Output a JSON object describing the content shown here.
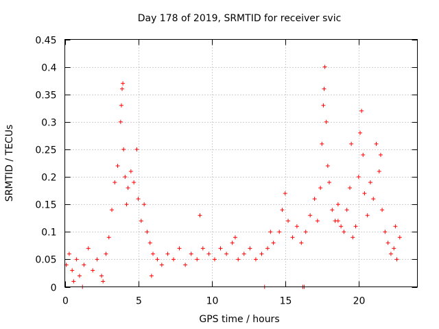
{
  "chart_data": {
    "type": "scatter",
    "title": "Day 178 of 2019, SRMTID for receiver svic",
    "xlabel": "GPS time / hours",
    "ylabel": "SRMTID / TECUs",
    "xlim": [
      0,
      24
    ],
    "ylim": [
      0,
      0.45
    ],
    "xticks": [
      0,
      5,
      10,
      15,
      20
    ],
    "xtick_labels": [
      "0",
      "5",
      "10",
      "15",
      "20"
    ],
    "yticks": [
      0,
      0.05,
      0.1,
      0.15,
      0.2,
      0.25,
      0.3,
      0.35,
      0.4,
      0.45
    ],
    "ytick_labels": [
      "0",
      "0.05",
      "0.1",
      "0.15",
      "0.2",
      "0.25",
      "0.3",
      "0.35",
      "0.4",
      "0.45"
    ],
    "grid": true,
    "marker": "+",
    "marker_color": "#ff0000",
    "series": [
      {
        "name": "SRMTID",
        "x": [
          0.1,
          0.3,
          0.5,
          0.8,
          1.0,
          1.3,
          1.6,
          1.9,
          2.2,
          2.5,
          2.8,
          3.0,
          3.2,
          3.4,
          3.6,
          3.8,
          3.85,
          3.9,
          3.95,
          4.0,
          4.1,
          4.2,
          4.3,
          4.5,
          4.7,
          4.9,
          5.0,
          5.2,
          5.4,
          5.6,
          5.8,
          6.0,
          6.3,
          6.6,
          7.0,
          7.4,
          7.8,
          8.2,
          8.6,
          9.0,
          9.4,
          9.8,
          10.2,
          10.6,
          11.0,
          11.4,
          11.8,
          12.2,
          12.6,
          13.0,
          13.4,
          13.8,
          14.2,
          14.6,
          14.8,
          15.0,
          15.2,
          15.5,
          15.8,
          16.1,
          16.4,
          16.7,
          17.0,
          17.2,
          17.4,
          17.5,
          17.6,
          17.65,
          17.7,
          17.8,
          17.9,
          18.0,
          18.2,
          18.4,
          18.6,
          18.8,
          19.0,
          19.2,
          19.4,
          19.6,
          19.8,
          20.0,
          20.1,
          20.2,
          20.3,
          20.4,
          20.6,
          20.8,
          21.0,
          21.2,
          21.4,
          21.6,
          21.8,
          22.0,
          22.2,
          22.4,
          22.6,
          22.8,
          13.6,
          16.2,
          16.3,
          2.6,
          1.2,
          0.6,
          5.9,
          9.2,
          11.6,
          14.0,
          18.6,
          19.5,
          21.5,
          22.5
        ],
        "y": [
          0.04,
          0.06,
          0.03,
          0.05,
          0.02,
          0.04,
          0.07,
          0.03,
          0.05,
          0.02,
          0.06,
          0.09,
          0.14,
          0.19,
          0.22,
          0.3,
          0.33,
          0.36,
          0.37,
          0.25,
          0.2,
          0.15,
          0.18,
          0.21,
          0.19,
          0.25,
          0.16,
          0.12,
          0.15,
          0.1,
          0.08,
          0.06,
          0.05,
          0.04,
          0.06,
          0.05,
          0.07,
          0.04,
          0.06,
          0.05,
          0.07,
          0.06,
          0.05,
          0.07,
          0.06,
          0.08,
          0.05,
          0.06,
          0.07,
          0.05,
          0.06,
          0.07,
          0.08,
          0.1,
          0.14,
          0.17,
          0.12,
          0.09,
          0.11,
          0.08,
          0.1,
          0.13,
          0.16,
          0.12,
          0.18,
          0.26,
          0.33,
          0.36,
          0.4,
          0.3,
          0.22,
          0.19,
          0.14,
          0.12,
          0.15,
          0.11,
          0.1,
          0.14,
          0.18,
          0.09,
          0.11,
          0.2,
          0.28,
          0.32,
          0.24,
          0.17,
          0.13,
          0.19,
          0.16,
          0.26,
          0.21,
          0.14,
          0.1,
          0.08,
          0.06,
          0.07,
          0.05,
          0.09,
          0.0,
          0.0,
          0.0,
          0.01,
          0.0,
          0.01,
          0.02,
          0.13,
          0.09,
          0.1,
          0.12,
          0.26,
          0.24,
          0.11
        ]
      }
    ]
  }
}
